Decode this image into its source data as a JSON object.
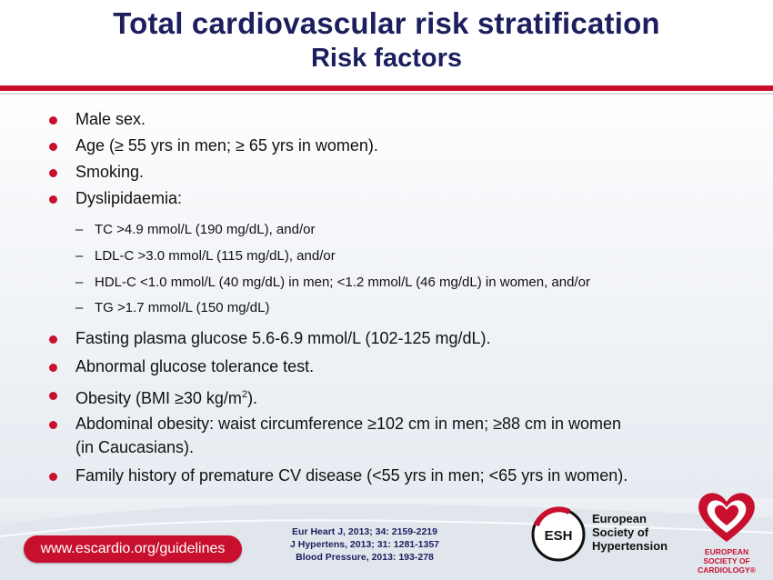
{
  "title_line1": "Total cardiovascular risk stratification",
  "title_line2": "Risk factors",
  "bullets": {
    "b1": "Male sex.",
    "b2": "Age (≥ 55 yrs in men; ≥ 65 yrs in women).",
    "b3": "Smoking.",
    "b4": "Dyslipidaemia:",
    "sub1": "TC >4.9 mmol/L (190 mg/dL), and/or",
    "sub2": "LDL-C >3.0 mmol/L (115 mg/dL), and/or",
    "sub3": "HDL-C <1.0 mmol/L (40 mg/dL) in men; <1.2 mmol/L (46 mg/dL) in women, and/or",
    "sub4": "TG >1.7 mmol/L (150 mg/dL)",
    "b5": "Fasting plasma glucose 5.6-6.9 mmol/L (102-125 mg/dL).",
    "b6": "Abnormal glucose tolerance test.",
    "b7_pre": "Obesity (BMI ≥30 kg/m",
    "b7_sup": "2",
    "b7_post": ").",
    "b8_line1": "Abdominal obesity: waist circumference ≥102 cm in men; ≥88 cm in women",
    "b8_line2": "(in Caucasians).",
    "b9": "Family history of premature CV disease (<55 yrs in men; <65 yrs in women)."
  },
  "sub_marker": "–",
  "footer": {
    "url": "www.escardio.org/guidelines",
    "ref1": "Eur Heart J, 2013; 34: 2159-2219",
    "ref2": "J Hypertens, 2013; 31: 1281-1357",
    "ref3": "Blood Pressure, 2013: 193-278",
    "esh_abbr": "ESH",
    "esh_name1": "European",
    "esh_name2": "Society of",
    "esh_name3": "Hypertension",
    "esc_name1": "EUROPEAN",
    "esc_name2": "SOCIETY OF",
    "esc_name3": "CARDIOLOGY®"
  },
  "colors": {
    "accent_red": "#c8102e",
    "title_navy": "#1b1f5e"
  }
}
